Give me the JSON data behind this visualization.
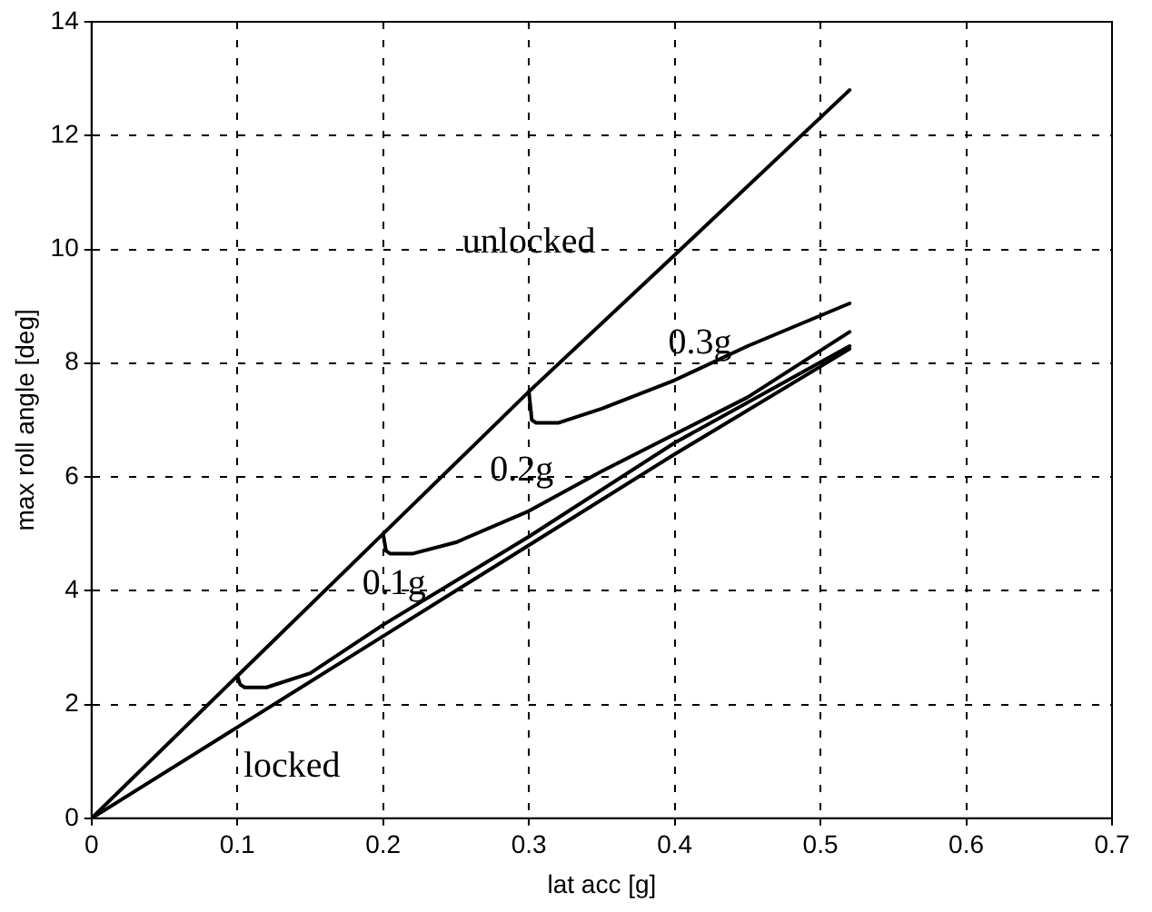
{
  "chart_data": {
    "type": "line",
    "xlabel": "lat acc [g]",
    "ylabel": "max roll angle [deg]",
    "xlim": [
      0,
      0.7
    ],
    "xticks": [
      0,
      0.1,
      0.2,
      0.3,
      0.4,
      0.5,
      0.6,
      0.7
    ],
    "ylim": [
      0,
      14
    ],
    "yticks": [
      0,
      2,
      4,
      6,
      8,
      10,
      12,
      14
    ],
    "grid": true,
    "line_style": "solid",
    "marker": "none",
    "series": [
      {
        "name": "unlocked",
        "color": "#000000",
        "x": [
          0,
          0.1,
          0.2,
          0.3,
          0.4,
          0.52
        ],
        "values": [
          0,
          2.5,
          5.0,
          7.5,
          9.9,
          12.8
        ]
      },
      {
        "name": "0.3g",
        "color": "#000000",
        "x": [
          0.3,
          0.302,
          0.305,
          0.32,
          0.35,
          0.4,
          0.45,
          0.52
        ],
        "values": [
          7.5,
          7.0,
          6.95,
          6.95,
          7.2,
          7.7,
          8.3,
          9.05
        ]
      },
      {
        "name": "0.2g",
        "color": "#000000",
        "x": [
          0.2,
          0.202,
          0.205,
          0.22,
          0.25,
          0.3,
          0.35,
          0.4,
          0.45,
          0.52
        ],
        "values": [
          5.0,
          4.7,
          4.65,
          4.65,
          4.85,
          5.4,
          6.1,
          6.75,
          7.4,
          8.55
        ]
      },
      {
        "name": "0.1g",
        "color": "#000000",
        "x": [
          0.1,
          0.102,
          0.105,
          0.12,
          0.15,
          0.2,
          0.3,
          0.4,
          0.52
        ],
        "values": [
          2.5,
          2.35,
          2.3,
          2.3,
          2.55,
          3.4,
          4.95,
          6.6,
          8.3
        ]
      },
      {
        "name": "locked",
        "color": "#000000",
        "x": [
          0,
          0.1,
          0.2,
          0.3,
          0.4,
          0.52
        ],
        "values": [
          0,
          1.6,
          3.2,
          4.8,
          6.4,
          8.25
        ]
      }
    ]
  }
}
